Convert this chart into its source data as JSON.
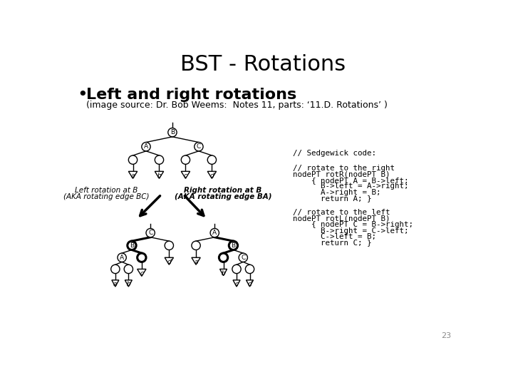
{
  "title": "BST - Rotations",
  "bullet": "Left and right rotations",
  "source": "(image source: Dr. Bob Weems:  Notes 11, parts: ‘11.D. Rotations’ )",
  "page_number": "23",
  "code_line1": "// Sedgewick code:",
  "code_line2": "// rotate to the right",
  "code_line3": "nodePT rotR(nodePT B)",
  "code_line4": "    { nodePT A = B->left;",
  "code_line5": "      B->left = A->right;",
  "code_line6": "      A->right = B;",
  "code_line7": "      return A; }",
  "code_line8": "// rotate to the left",
  "code_line9": "nodePT rotL(nodePT B)",
  "code_line10": "    { nodePT C = B->right;",
  "code_line11": "      B->right = C->left;",
  "code_line12": "      C->left = B;",
  "code_line13": "      return C; }",
  "left_label1": "Left rotation at B",
  "left_label2": "(AKA rotating edge BC)",
  "right_label1": "Right rotation at B",
  "right_label2": "(AKA rotating edge BA)",
  "bg_color": "#ffffff",
  "node_color": "#ffffff",
  "node_edge": "#000000",
  "tri_color": "#ffffff",
  "tri_edge": "#000000",
  "text_color": "#000000",
  "title_fontsize": 22,
  "bullet_fontsize": 16,
  "source_fontsize": 9,
  "code_fontsize": 7.8,
  "label_fontsize": 7.5,
  "page_fontsize": 8
}
